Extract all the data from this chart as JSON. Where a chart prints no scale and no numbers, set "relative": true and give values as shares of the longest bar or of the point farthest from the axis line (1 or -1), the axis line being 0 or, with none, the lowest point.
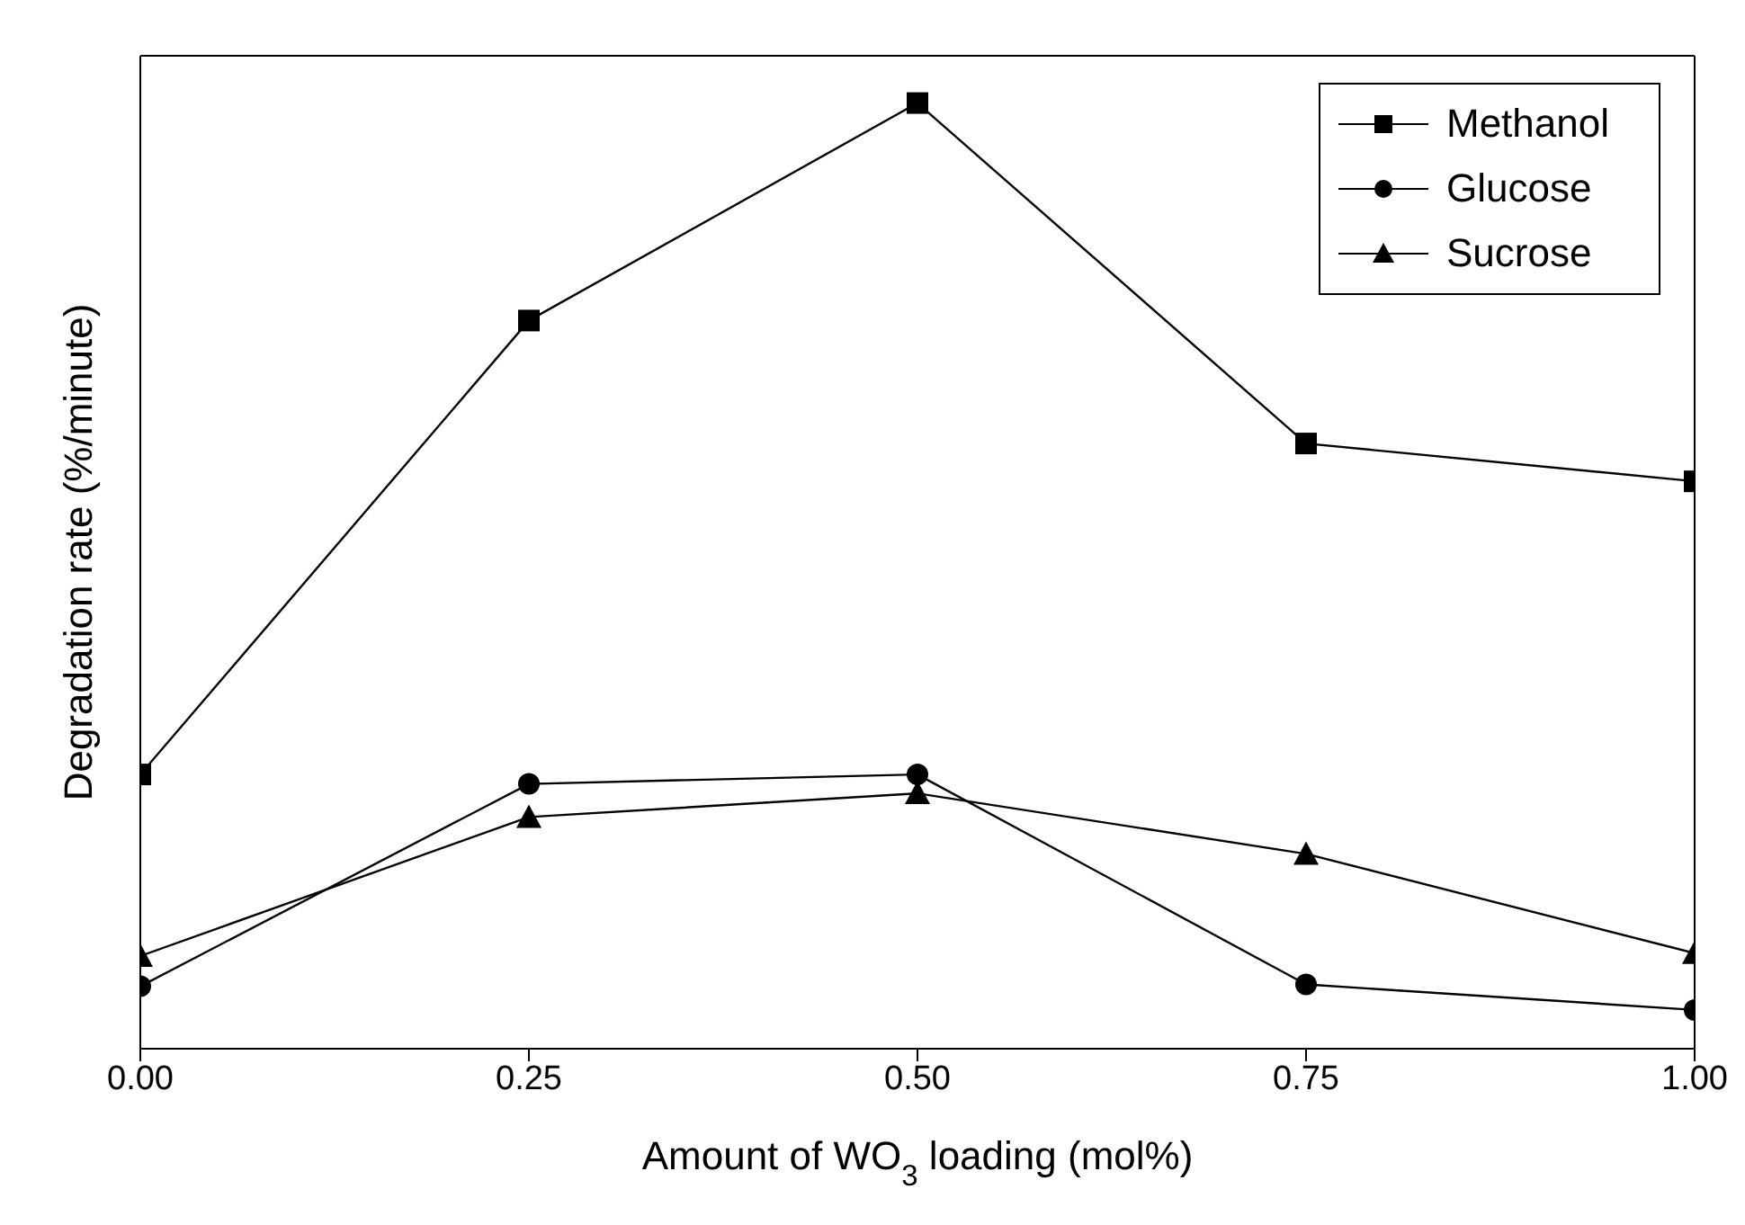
{
  "chart_data": {
    "type": "line",
    "relative": true,
    "xlabel": "Amount of WO$_{3}$ loading (mol%)",
    "ylabel": "Degradation rate (%/minute)",
    "x": [
      0,
      0.25,
      0.5,
      0.75,
      1
    ],
    "xlim": [
      0,
      1
    ],
    "xticks": [
      {
        "value": 0,
        "label": "0.00"
      },
      {
        "value": 0.25,
        "label": "0.25"
      },
      {
        "value": 0.5,
        "label": "0.50"
      },
      {
        "value": 0.75,
        "label": "0.75"
      },
      {
        "value": 1,
        "label": "1.00"
      }
    ],
    "legend": "top right",
    "grid": false,
    "line_style": "solid",
    "series": [
      {
        "name": "Methanol",
        "color": "#000000",
        "marker": "square",
        "values": [
          0.29,
          0.77,
          1,
          0.64,
          0.6
        ]
      },
      {
        "name": "Glucose",
        "color": "#000000",
        "marker": "circle",
        "values": [
          0.066,
          0.28,
          0.29,
          0.068,
          0.041
        ]
      },
      {
        "name": "Sucrose",
        "color": "#000000",
        "marker": "triangle",
        "values": [
          0.098,
          0.245,
          0.27,
          0.206,
          0.101
        ]
      }
    ]
  }
}
